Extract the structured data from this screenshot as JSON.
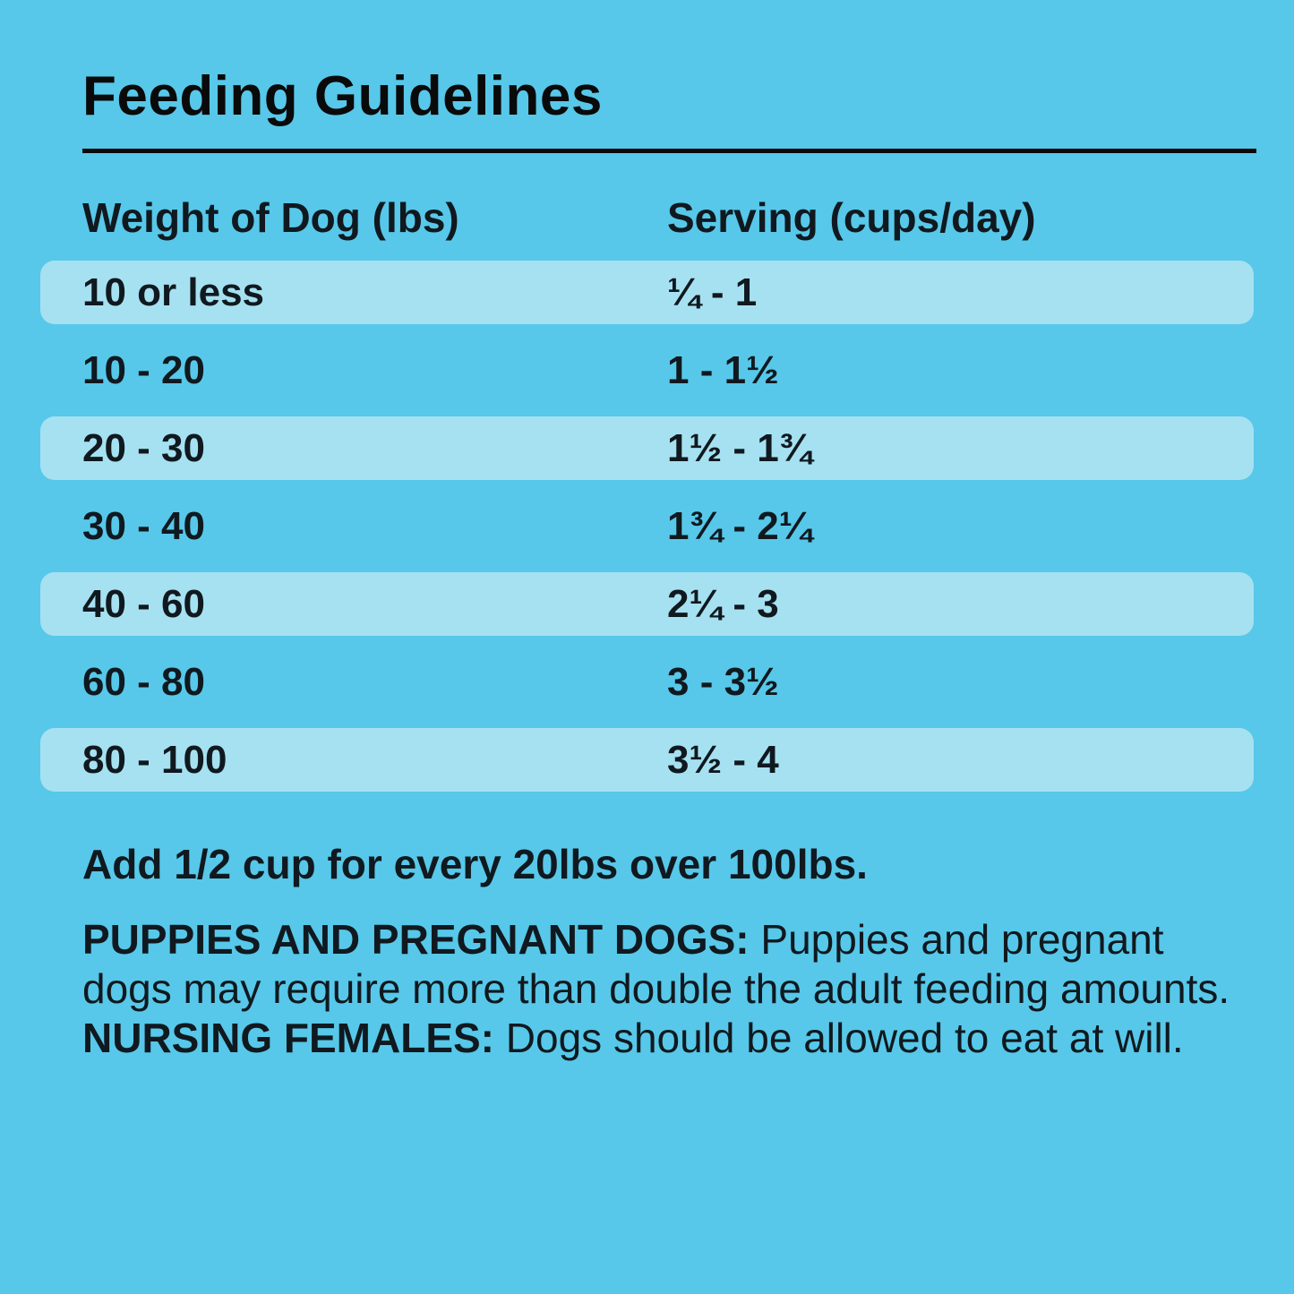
{
  "title": "Feeding Guidelines",
  "colors": {
    "background": "#57C8E9",
    "row_highlight": "#A6E1F1",
    "text": "#10191F",
    "title_ink": "#0A0A0A"
  },
  "table": {
    "headers": {
      "weight": "Weight of Dog (lbs)",
      "serving": "Serving (cups/day)"
    },
    "rows": [
      {
        "weight": "10 or less",
        "serving": "¼ - 1",
        "highlighted": true
      },
      {
        "weight": "10 - 20",
        "serving": "1 - 1½",
        "highlighted": false
      },
      {
        "weight": "20 - 30",
        "serving": "1½ - 1¾",
        "highlighted": true
      },
      {
        "weight": "30 - 40",
        "serving": "1¾ - 2¼",
        "highlighted": false
      },
      {
        "weight": "40 - 60",
        "serving": "2¼ - 3",
        "highlighted": true
      },
      {
        "weight": "60 - 80",
        "serving": "3 - 3½",
        "highlighted": false
      },
      {
        "weight": "80 - 100",
        "serving": "3½ - 4",
        "highlighted": true
      }
    ]
  },
  "notes": {
    "over_100": "Add 1/2 cup for every 20lbs over 100lbs.",
    "special_segments": [
      {
        "text": "PUPPIES AND PREGNANT DOGS: ",
        "bold": true
      },
      {
        "text": "Puppies and pregnant dogs may require more than double the adult feeding amounts. ",
        "bold": false
      },
      {
        "text": "NURSING FEMALES: ",
        "bold": true
      },
      {
        "text": "Dogs should be allowed to eat at will.",
        "bold": false
      }
    ]
  }
}
